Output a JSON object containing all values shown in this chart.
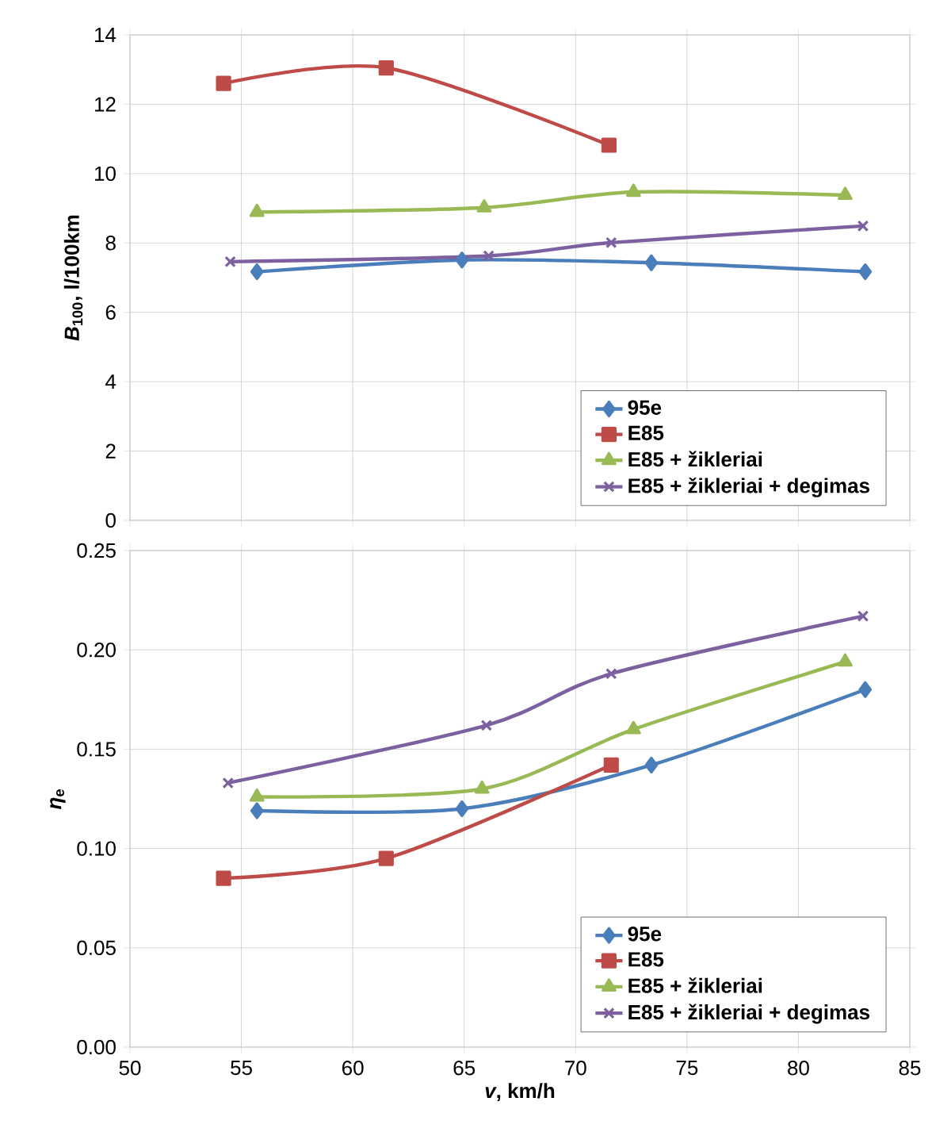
{
  "chart_data": [
    {
      "type": "line",
      "ylabel": "*B*$_{100}$, l/100km",
      "xlim": [
        50,
        85
      ],
      "xticks": [
        50,
        55,
        60,
        65,
        70,
        75,
        80,
        85
      ],
      "ylim": [
        0,
        14
      ],
      "yticks": [
        0,
        2,
        4,
        6,
        8,
        10,
        12,
        14
      ],
      "tick_labels": "y",
      "grid": true,
      "legend": "bottom right",
      "series": [
        {
          "name": "95e",
          "color": "#4a7ebb",
          "marker": "diamond",
          "x": [
            55.7,
            64.9,
            73.4,
            83.0
          ],
          "values": [
            7.17,
            7.51,
            7.43,
            7.17
          ]
        },
        {
          "name": "E85",
          "color": "#be4b48",
          "marker": "square",
          "x": [
            54.2,
            61.5,
            71.5
          ],
          "values": [
            12.6,
            13.05,
            10.82
          ]
        },
        {
          "name": "E85 + žikleriai",
          "color": "#98b954",
          "marker": "triangle",
          "x": [
            55.7,
            65.9,
            72.6,
            82.1
          ],
          "values": [
            8.89,
            9.02,
            9.47,
            9.38
          ]
        },
        {
          "name": "E85 + žikleriai + degimas",
          "color": "#7d60a0",
          "marker": "cross",
          "x": [
            54.5,
            66.1,
            71.6,
            82.9
          ],
          "values": [
            7.46,
            7.63,
            8.01,
            8.49
          ]
        }
      ]
    },
    {
      "type": "line",
      "xlabel": "*v*, km/h",
      "ylabel": "*η*$_{e}$",
      "xlim": [
        50,
        85
      ],
      "xticks": [
        50,
        55,
        60,
        65,
        70,
        75,
        80,
        85
      ],
      "ylim": [
        0,
        0.25
      ],
      "yticks": [
        {
          "value": 0,
          "label": "0.00"
        },
        {
          "value": 0.05,
          "label": "0.05"
        },
        {
          "value": 0.1,
          "label": "0.10"
        },
        {
          "value": 0.15,
          "label": "0.15"
        },
        {
          "value": 0.2,
          "label": "0.20"
        },
        {
          "value": 0.25,
          "label": "0.25"
        }
      ],
      "grid": true,
      "legend": "bottom right",
      "series": [
        {
          "name": "95e",
          "color": "#4a7ebb",
          "marker": "diamond",
          "x": [
            55.7,
            64.9,
            73.4,
            83.0
          ],
          "values": [
            0.119,
            0.12,
            0.142,
            0.18
          ]
        },
        {
          "name": "E85",
          "color": "#be4b48",
          "marker": "square",
          "x": [
            54.2,
            61.5,
            71.6
          ],
          "values": [
            0.085,
            0.095,
            0.142
          ]
        },
        {
          "name": "E85 + žikleriai",
          "color": "#98b954",
          "marker": "triangle",
          "x": [
            55.7,
            65.8,
            72.6,
            82.1
          ],
          "values": [
            0.126,
            0.13,
            0.16,
            0.194
          ]
        },
        {
          "name": "E85 + žikleriai + degimas",
          "color": "#7d60a0",
          "marker": "cross",
          "x": [
            54.4,
            66.0,
            71.6,
            82.9
          ],
          "values": [
            0.133,
            0.162,
            0.188,
            0.217
          ]
        }
      ]
    }
  ]
}
